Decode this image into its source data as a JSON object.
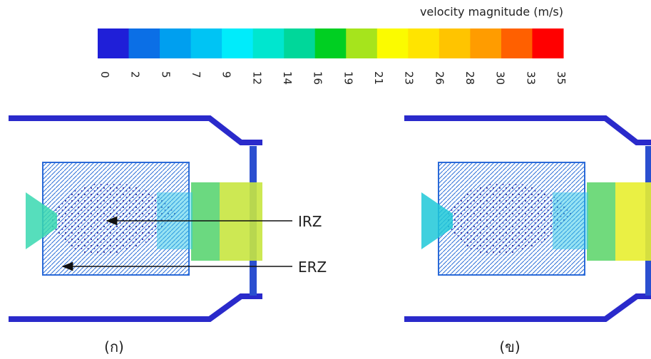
{
  "colorbar": {
    "title": "velocity magnitude (m/s)",
    "ticks": [
      0,
      2,
      5,
      7,
      9,
      12,
      14,
      16,
      19,
      21,
      23,
      26,
      28,
      30,
      33,
      35
    ],
    "colors": [
      "#1f1fd8",
      "#0b6fe6",
      "#009fef",
      "#00c4f4",
      "#00ecfb",
      "#00e6cf",
      "#00d79a",
      "#00cf22",
      "#a6e41c",
      "#fbfb00",
      "#ffe400",
      "#ffc400",
      "#ff9c00",
      "#ff6000",
      "#ff0000"
    ]
  },
  "annotations": [
    {
      "label": "IRZ"
    },
    {
      "label": "ERZ"
    }
  ],
  "panels": [
    {
      "label": "(ก)"
    },
    {
      "label": "(ข)"
    }
  ]
}
